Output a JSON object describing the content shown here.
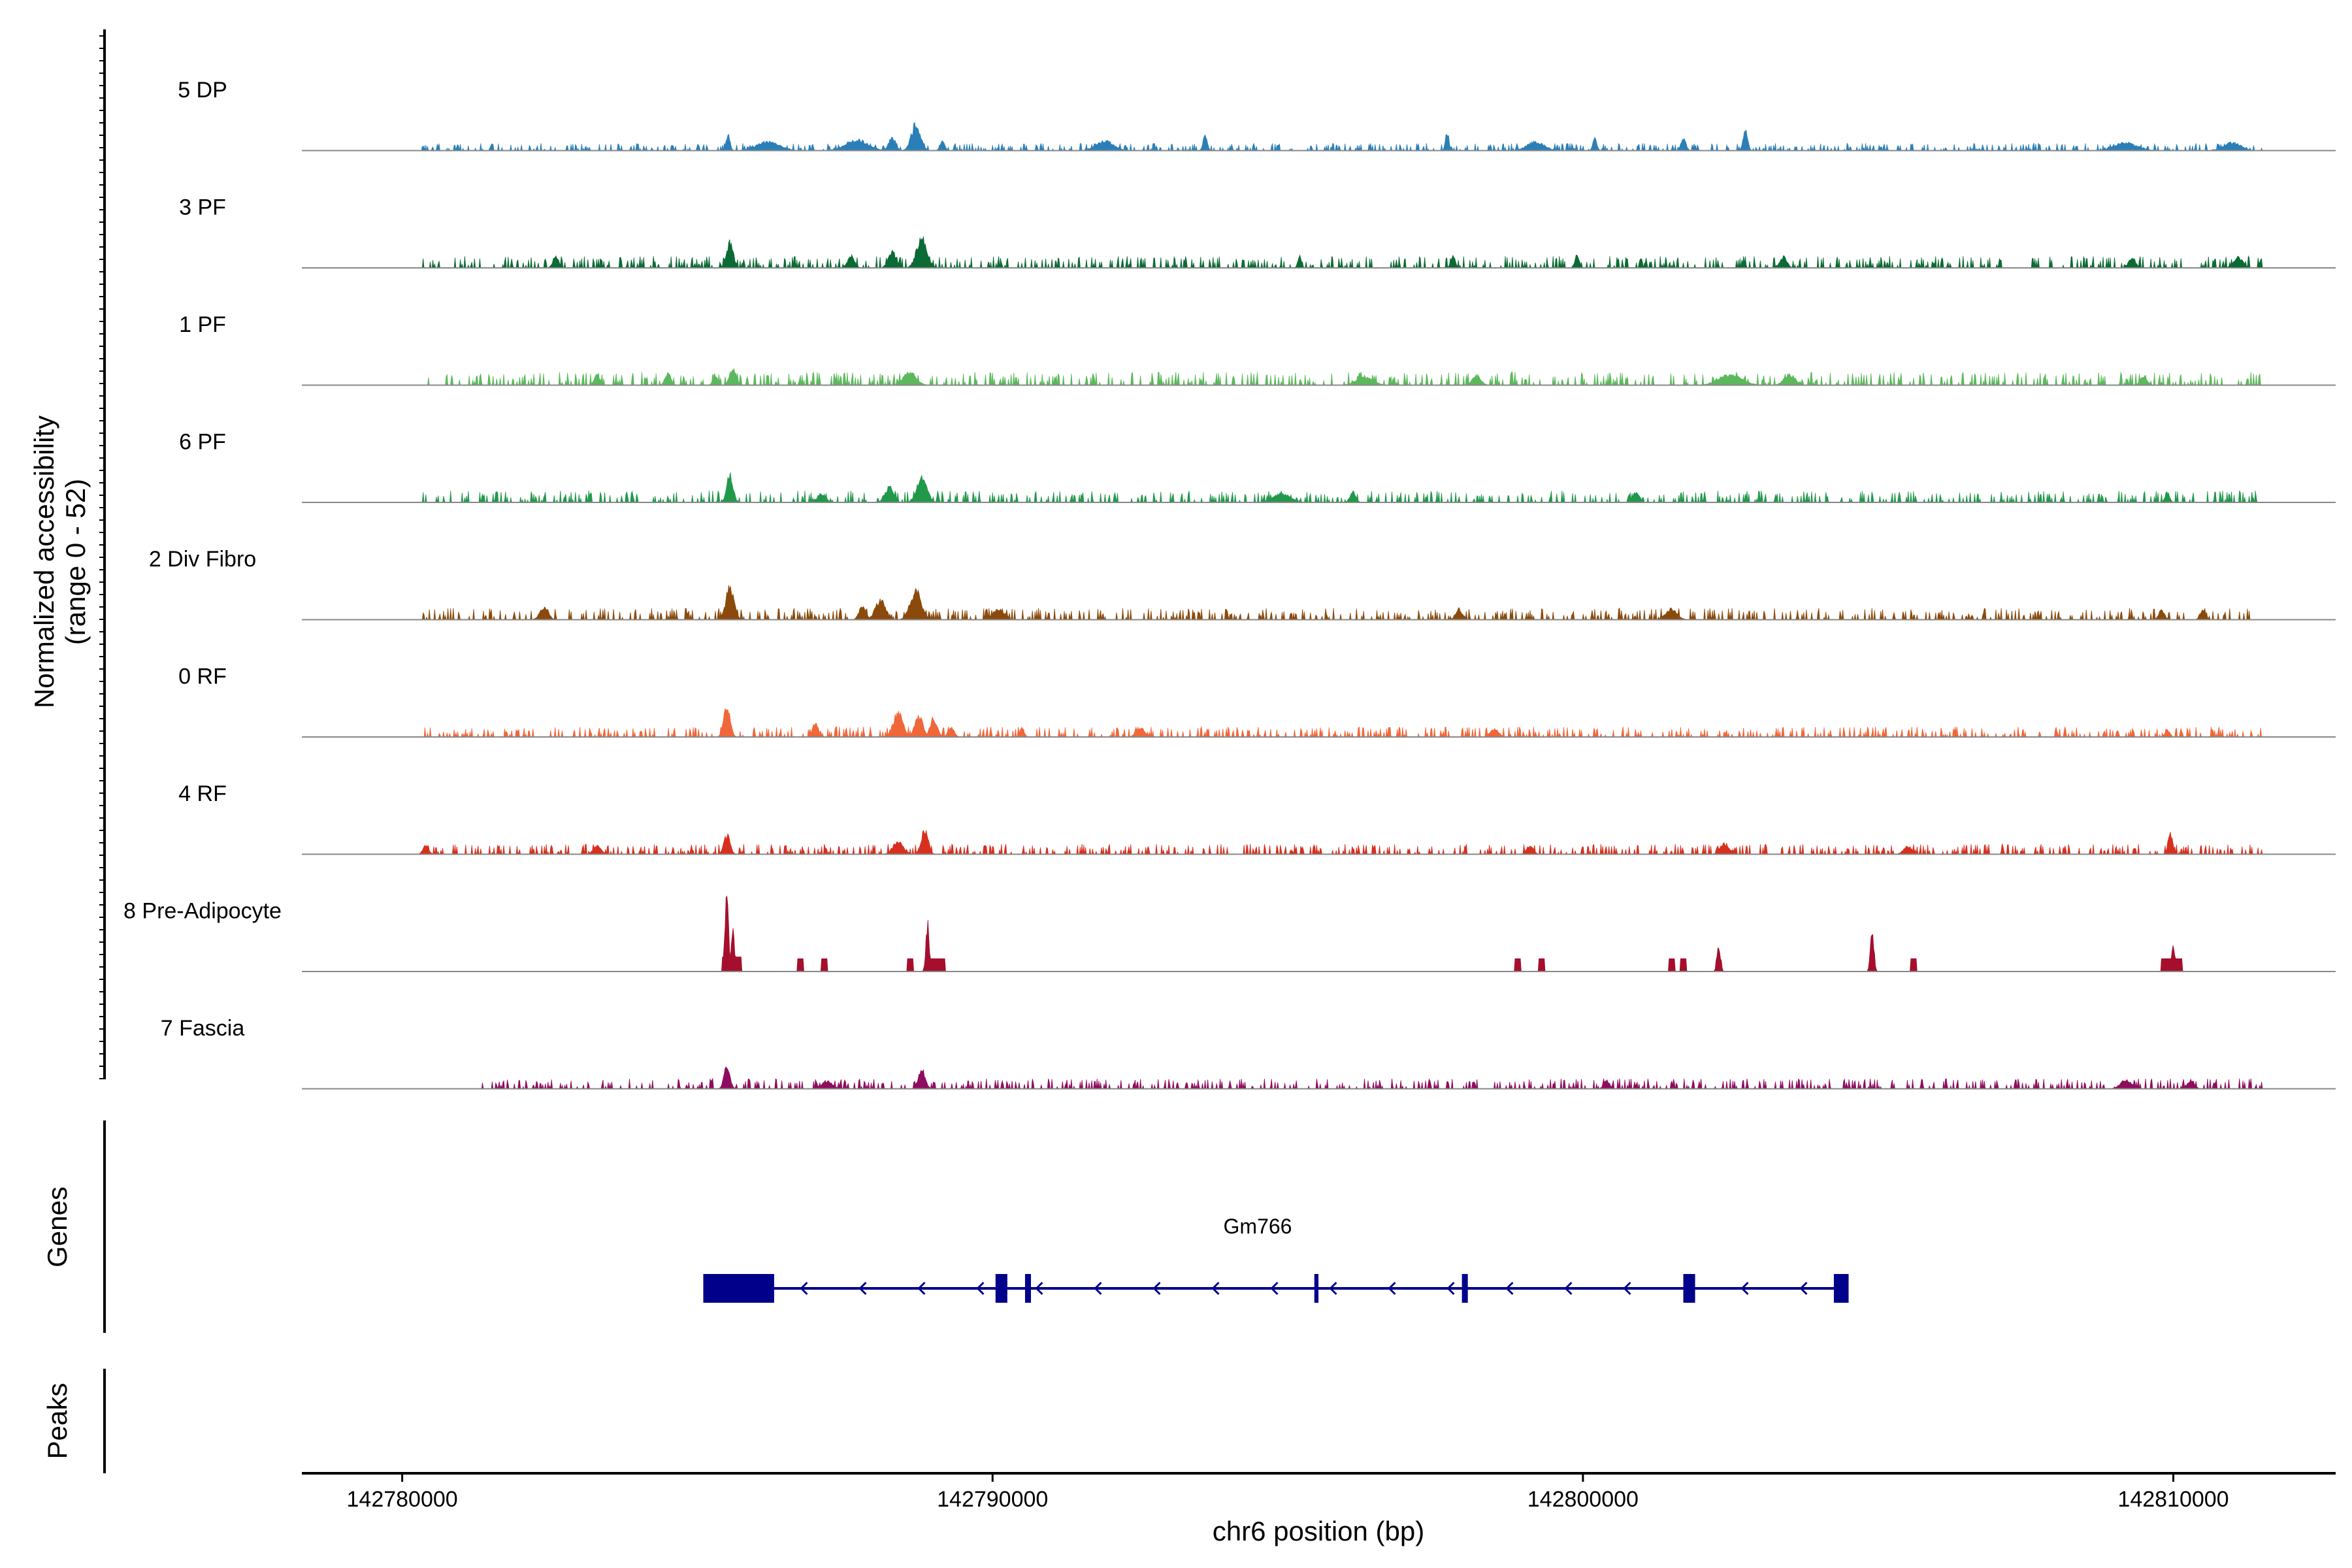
{
  "chart_data": {
    "type": "coverage",
    "region": {
      "chromosome": "chr6",
      "start": 142778300,
      "end": 142812750
    },
    "y_axis": {
      "title_line1": "Normalized accessibility",
      "title_line2": "(range 0 - 52)",
      "range": [
        0,
        52
      ]
    },
    "x_axis": {
      "title": "chr6 position (bp)",
      "ticks": [
        {
          "value": 142780000,
          "label": "142780000"
        },
        {
          "value": 142790000,
          "label": "142790000"
        },
        {
          "value": 142800000,
          "label": "142800000"
        },
        {
          "value": 142810000,
          "label": "142810000"
        }
      ]
    },
    "tracks": [
      {
        "name": "5 DP",
        "color": "#2b7fb8",
        "peaks": [
          [
            142785520,
            0.18,
            70
          ],
          [
            142788700,
            0.3,
            160
          ],
          [
            142788300,
            0.15,
            120
          ],
          [
            142789150,
            0.12,
            80
          ],
          [
            142793600,
            0.18,
            70
          ],
          [
            142797700,
            0.22,
            60
          ],
          [
            142800200,
            0.15,
            70
          ],
          [
            142801700,
            0.14,
            90
          ],
          [
            142802750,
            0.22,
            80
          ],
          [
            142786200,
            0.1,
            400
          ],
          [
            142787700,
            0.12,
            400
          ],
          [
            142791900,
            0.11,
            300
          ],
          [
            142799200,
            0.1,
            300
          ],
          [
            142809200,
            0.09,
            400
          ],
          [
            142811000,
            0.09,
            300
          ]
        ],
        "noise_start": 142780300,
        "noise_end": 142811500,
        "noise_level": 0.05
      },
      {
        "name": "3 PF",
        "color": "#0b6b34",
        "peaks": [
          [
            142785550,
            0.3,
            120
          ],
          [
            142788800,
            0.35,
            180
          ],
          [
            142788300,
            0.18,
            140
          ],
          [
            142787600,
            0.14,
            120
          ],
          [
            142782600,
            0.14,
            100
          ],
          [
            142795200,
            0.14,
            60
          ],
          [
            142797800,
            0.13,
            80
          ],
          [
            142799900,
            0.14,
            80
          ],
          [
            142811100,
            0.12,
            160
          ],
          [
            142809300,
            0.12,
            120
          ],
          [
            142803400,
            0.13,
            120
          ]
        ],
        "noise_start": 142780300,
        "noise_end": 142811500,
        "noise_level": 0.08
      },
      {
        "name": "1 PF",
        "color": "#5cb85c",
        "peaks": [
          [
            142785600,
            0.18,
            120
          ],
          [
            142784500,
            0.14,
            100
          ],
          [
            142785300,
            0.12,
            80
          ],
          [
            142788600,
            0.15,
            220
          ],
          [
            142783300,
            0.12,
            100
          ],
          [
            142798200,
            0.11,
            150
          ],
          [
            142796300,
            0.09,
            300
          ],
          [
            142802500,
            0.12,
            400
          ],
          [
            142803500,
            0.12,
            200
          ],
          [
            142809500,
            0.1,
            120
          ]
        ],
        "noise_start": 142780300,
        "noise_end": 142811500,
        "noise_level": 0.09
      },
      {
        "name": "6 PF",
        "color": "#22984b",
        "peaks": [
          [
            142785550,
            0.32,
            110
          ],
          [
            142788800,
            0.28,
            180
          ],
          [
            142788250,
            0.18,
            150
          ],
          [
            142800900,
            0.12,
            110
          ],
          [
            142796100,
            0.12,
            100
          ],
          [
            142794900,
            0.1,
            300
          ],
          [
            142809900,
            0.12,
            80
          ],
          [
            142787100,
            0.1,
            150
          ]
        ],
        "noise_start": 142780300,
        "noise_end": 142811500,
        "noise_level": 0.08
      },
      {
        "name": "2 Div Fibro",
        "color": "#8b4a0b",
        "peaks": [
          [
            142785550,
            0.38,
            140
          ],
          [
            142788700,
            0.32,
            200
          ],
          [
            142788100,
            0.22,
            180
          ],
          [
            142787800,
            0.16,
            120
          ],
          [
            142782400,
            0.14,
            150
          ],
          [
            142790100,
            0.12,
            200
          ],
          [
            142797900,
            0.12,
            120
          ],
          [
            142801500,
            0.12,
            200
          ],
          [
            142809800,
            0.11,
            100
          ],
          [
            142810500,
            0.1,
            100
          ]
        ],
        "noise_start": 142780300,
        "noise_end": 142811500,
        "noise_level": 0.08
      },
      {
        "name": "0 RF",
        "color": "#f0673a",
        "peaks": [
          [
            142785500,
            0.38,
            110
          ],
          [
            142788400,
            0.28,
            170
          ],
          [
            142788750,
            0.25,
            140
          ],
          [
            142789000,
            0.22,
            120
          ],
          [
            142789300,
            0.1,
            110
          ],
          [
            142787000,
            0.16,
            100
          ],
          [
            142790500,
            0.1,
            80
          ],
          [
            142792500,
            0.11,
            140
          ],
          [
            142798500,
            0.09,
            150
          ],
          [
            142809900,
            0.08,
            80
          ]
        ],
        "noise_start": 142780300,
        "noise_end": 142811500,
        "noise_level": 0.07
      },
      {
        "name": "4 RF",
        "color": "#d7301f",
        "peaks": [
          [
            142785500,
            0.22,
            110
          ],
          [
            142788850,
            0.28,
            120
          ],
          [
            142788400,
            0.15,
            180
          ],
          [
            142799100,
            0.1,
            120
          ],
          [
            142802400,
            0.12,
            160
          ],
          [
            142809950,
            0.25,
            80
          ],
          [
            142780400,
            0.1,
            100
          ],
          [
            142783300,
            0.1,
            130
          ],
          [
            142805500,
            0.09,
            150
          ]
        ],
        "noise_start": 142780300,
        "noise_end": 142811500,
        "noise_level": 0.07
      },
      {
        "name": "8 Pre-Adipocyte",
        "color": "#a50f2d",
        "peaks": [
          [
            142785500,
            1.0,
            60
          ],
          [
            142785600,
            0.55,
            50
          ],
          [
            142788900,
            0.55,
            60
          ],
          [
            142802300,
            0.3,
            60
          ],
          [
            142804900,
            0.48,
            60
          ],
          [
            142810000,
            0.3,
            60
          ]
        ],
        "blocks": [
          [
            142785420,
            142785750,
            0.16
          ],
          [
            142786700,
            142786800,
            0.14
          ],
          [
            142787100,
            142787200,
            0.14
          ],
          [
            142788550,
            142788650,
            0.14
          ],
          [
            142788850,
            142789200,
            0.14
          ],
          [
            142798850,
            142798950,
            0.14
          ],
          [
            142799250,
            142799350,
            0.14
          ],
          [
            142801450,
            142801550,
            0.14
          ],
          [
            142801650,
            142801750,
            0.14
          ],
          [
            142802250,
            142802350,
            0.12
          ],
          [
            142805550,
            142805650,
            0.14
          ],
          [
            142809800,
            142810150,
            0.14
          ]
        ],
        "noise_start": 0,
        "noise_end": 0,
        "noise_level": 0
      },
      {
        "name": "7 Fascia",
        "color": "#8e0c5e",
        "peaks": [
          [
            142785500,
            0.28,
            100
          ],
          [
            142788800,
            0.22,
            120
          ],
          [
            142787200,
            0.08,
            200
          ],
          [
            142809200,
            0.1,
            200
          ],
          [
            142810300,
            0.1,
            120
          ],
          [
            142800400,
            0.1,
            100
          ]
        ],
        "noise_start": 142781300,
        "noise_end": 142811500,
        "noise_level": 0.07
      }
    ],
    "gene": {
      "name": "Gm766",
      "color": "#00008b",
      "strand": "-",
      "start": 142785100,
      "end": 142804500,
      "exons": [
        [
          142785100,
          142786300
        ],
        [
          142790050,
          142790250
        ],
        [
          142790550,
          142790650
        ],
        [
          142795450,
          142795520
        ],
        [
          142797950,
          142798050
        ],
        [
          142801700,
          142801900
        ],
        [
          142804250,
          142804500
        ]
      ]
    },
    "side_labels": {
      "genes": "Genes",
      "peaks": "Peaks"
    }
  }
}
